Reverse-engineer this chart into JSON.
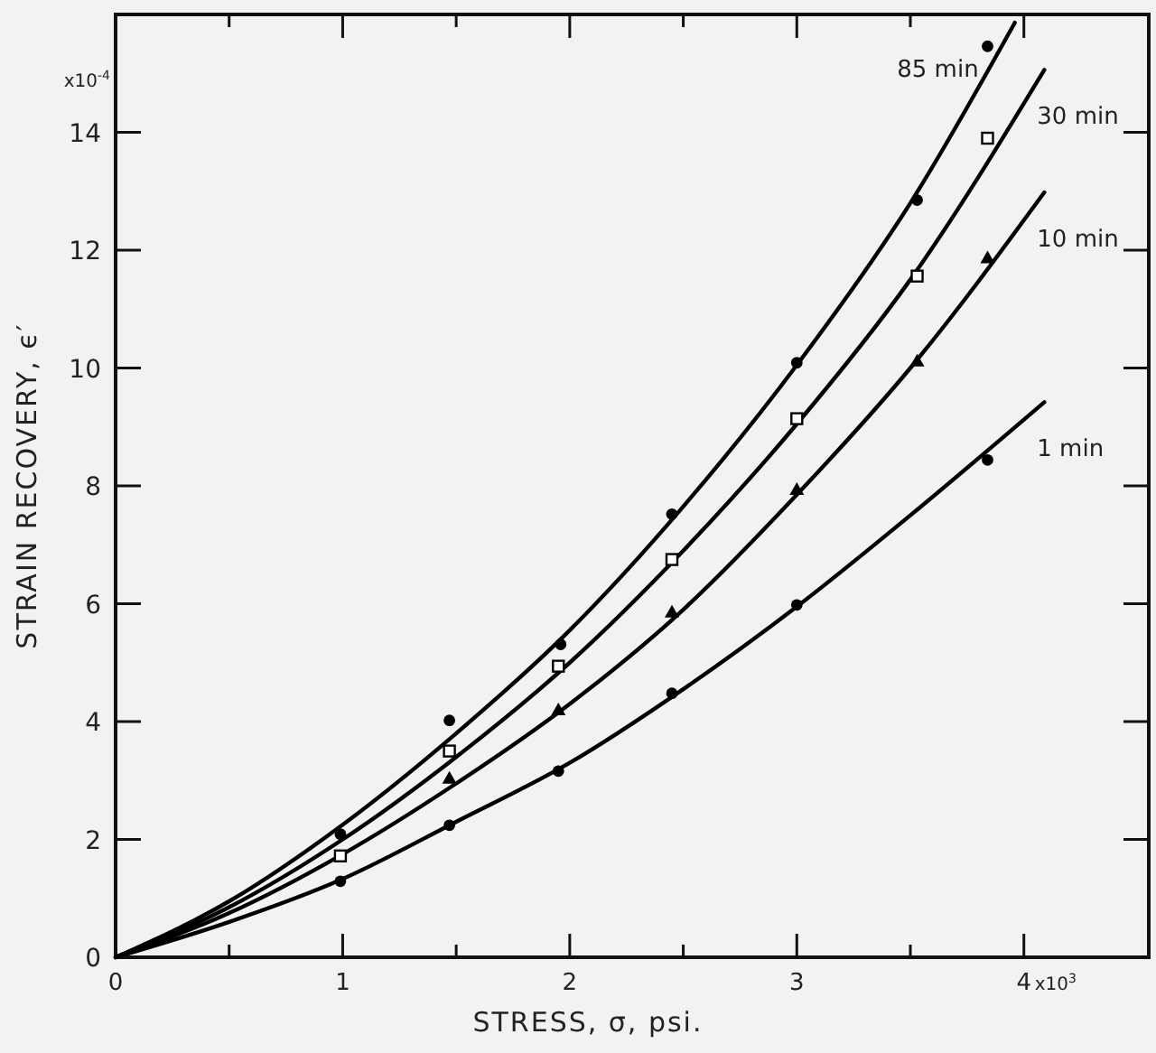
{
  "chart_data": {
    "type": "line",
    "xlabel": "STRESS, σ, psi.",
    "ylabel": "STRAIN RECOVERY, ϵ′",
    "annotations": [
      "x10$^{-4}$",
      "x10$^{3}$"
    ],
    "xlim": [
      0,
      4.55
    ],
    "ylim": [
      0,
      16
    ],
    "xticks": [
      0,
      {
        "value": 0.5,
        "label": null
      },
      1,
      {
        "value": 1.5,
        "label": null
      },
      2,
      {
        "value": 2.5,
        "label": null
      },
      3,
      {
        "value": 3.5,
        "label": null
      },
      4
    ],
    "yticks": [
      0,
      2,
      4,
      6,
      8,
      10,
      12,
      14
    ],
    "grid": false,
    "legend": false,
    "series": [
      {
        "name": "85 min",
        "color": "#000000",
        "marker": "none",
        "line_style": "solid",
        "x": [
          0,
          0.5,
          1,
          1.5,
          2,
          2.5,
          3,
          3.5,
          3.96
        ],
        "values": [
          0,
          0.95,
          2.25,
          3.8,
          5.55,
          7.65,
          10.05,
          12.8,
          15.86
        ]
      },
      {
        "name": "30 min",
        "color": "#000000",
        "marker": "none",
        "line_style": "solid",
        "x": [
          0,
          0.5,
          1,
          1.5,
          2,
          2.5,
          3,
          3.5,
          4.09
        ],
        "values": [
          0,
          0.85,
          2.0,
          3.4,
          5.0,
          6.9,
          9.05,
          11.5,
          15.06
        ]
      },
      {
        "name": "10 min",
        "color": "#000000",
        "marker": "none",
        "line_style": "solid",
        "x": [
          0,
          0.5,
          1,
          1.5,
          2,
          2.5,
          3,
          3.5,
          4.09
        ],
        "values": [
          0,
          0.75,
          1.75,
          2.95,
          4.3,
          5.9,
          7.85,
          10.0,
          12.98
        ]
      },
      {
        "name": "1 min",
        "color": "#000000",
        "marker": "none",
        "line_style": "solid",
        "x": [
          0,
          0.5,
          1,
          1.5,
          2,
          2.5,
          3,
          3.5,
          4.09
        ],
        "values": [
          0,
          0.6,
          1.33,
          2.3,
          3.3,
          4.55,
          5.95,
          7.5,
          9.42
        ]
      },
      {
        "type": "scatter",
        "color": "#000000",
        "marker": "circle",
        "x": [
          0.99,
          1.47,
          1.96,
          2.45,
          3.0,
          3.53,
          3.84
        ],
        "values": [
          2.09,
          4.02,
          5.31,
          7.52,
          10.09,
          12.85,
          15.46
        ]
      },
      {
        "type": "scatter",
        "color": "#000000",
        "marker": "square",
        "x": [
          0.99,
          1.47,
          1.95,
          2.45,
          3.0,
          3.53,
          3.84
        ],
        "values": [
          1.72,
          3.5,
          4.94,
          6.75,
          9.14,
          11.56,
          13.9
        ]
      },
      {
        "type": "scatter",
        "color": "#000000",
        "marker": "triangle",
        "x": [
          1.47,
          1.95,
          2.45,
          3.0,
          3.53,
          3.84
        ],
        "values": [
          3.04,
          4.2,
          5.86,
          7.94,
          10.12,
          11.87
        ]
      },
      {
        "type": "scatter",
        "color": "#000000",
        "marker": "circle",
        "x": [
          0.99,
          1.47,
          1.95,
          2.45,
          3.0,
          3.84
        ],
        "values": [
          1.29,
          2.24,
          3.16,
          4.48,
          5.98,
          8.44
        ]
      }
    ]
  }
}
